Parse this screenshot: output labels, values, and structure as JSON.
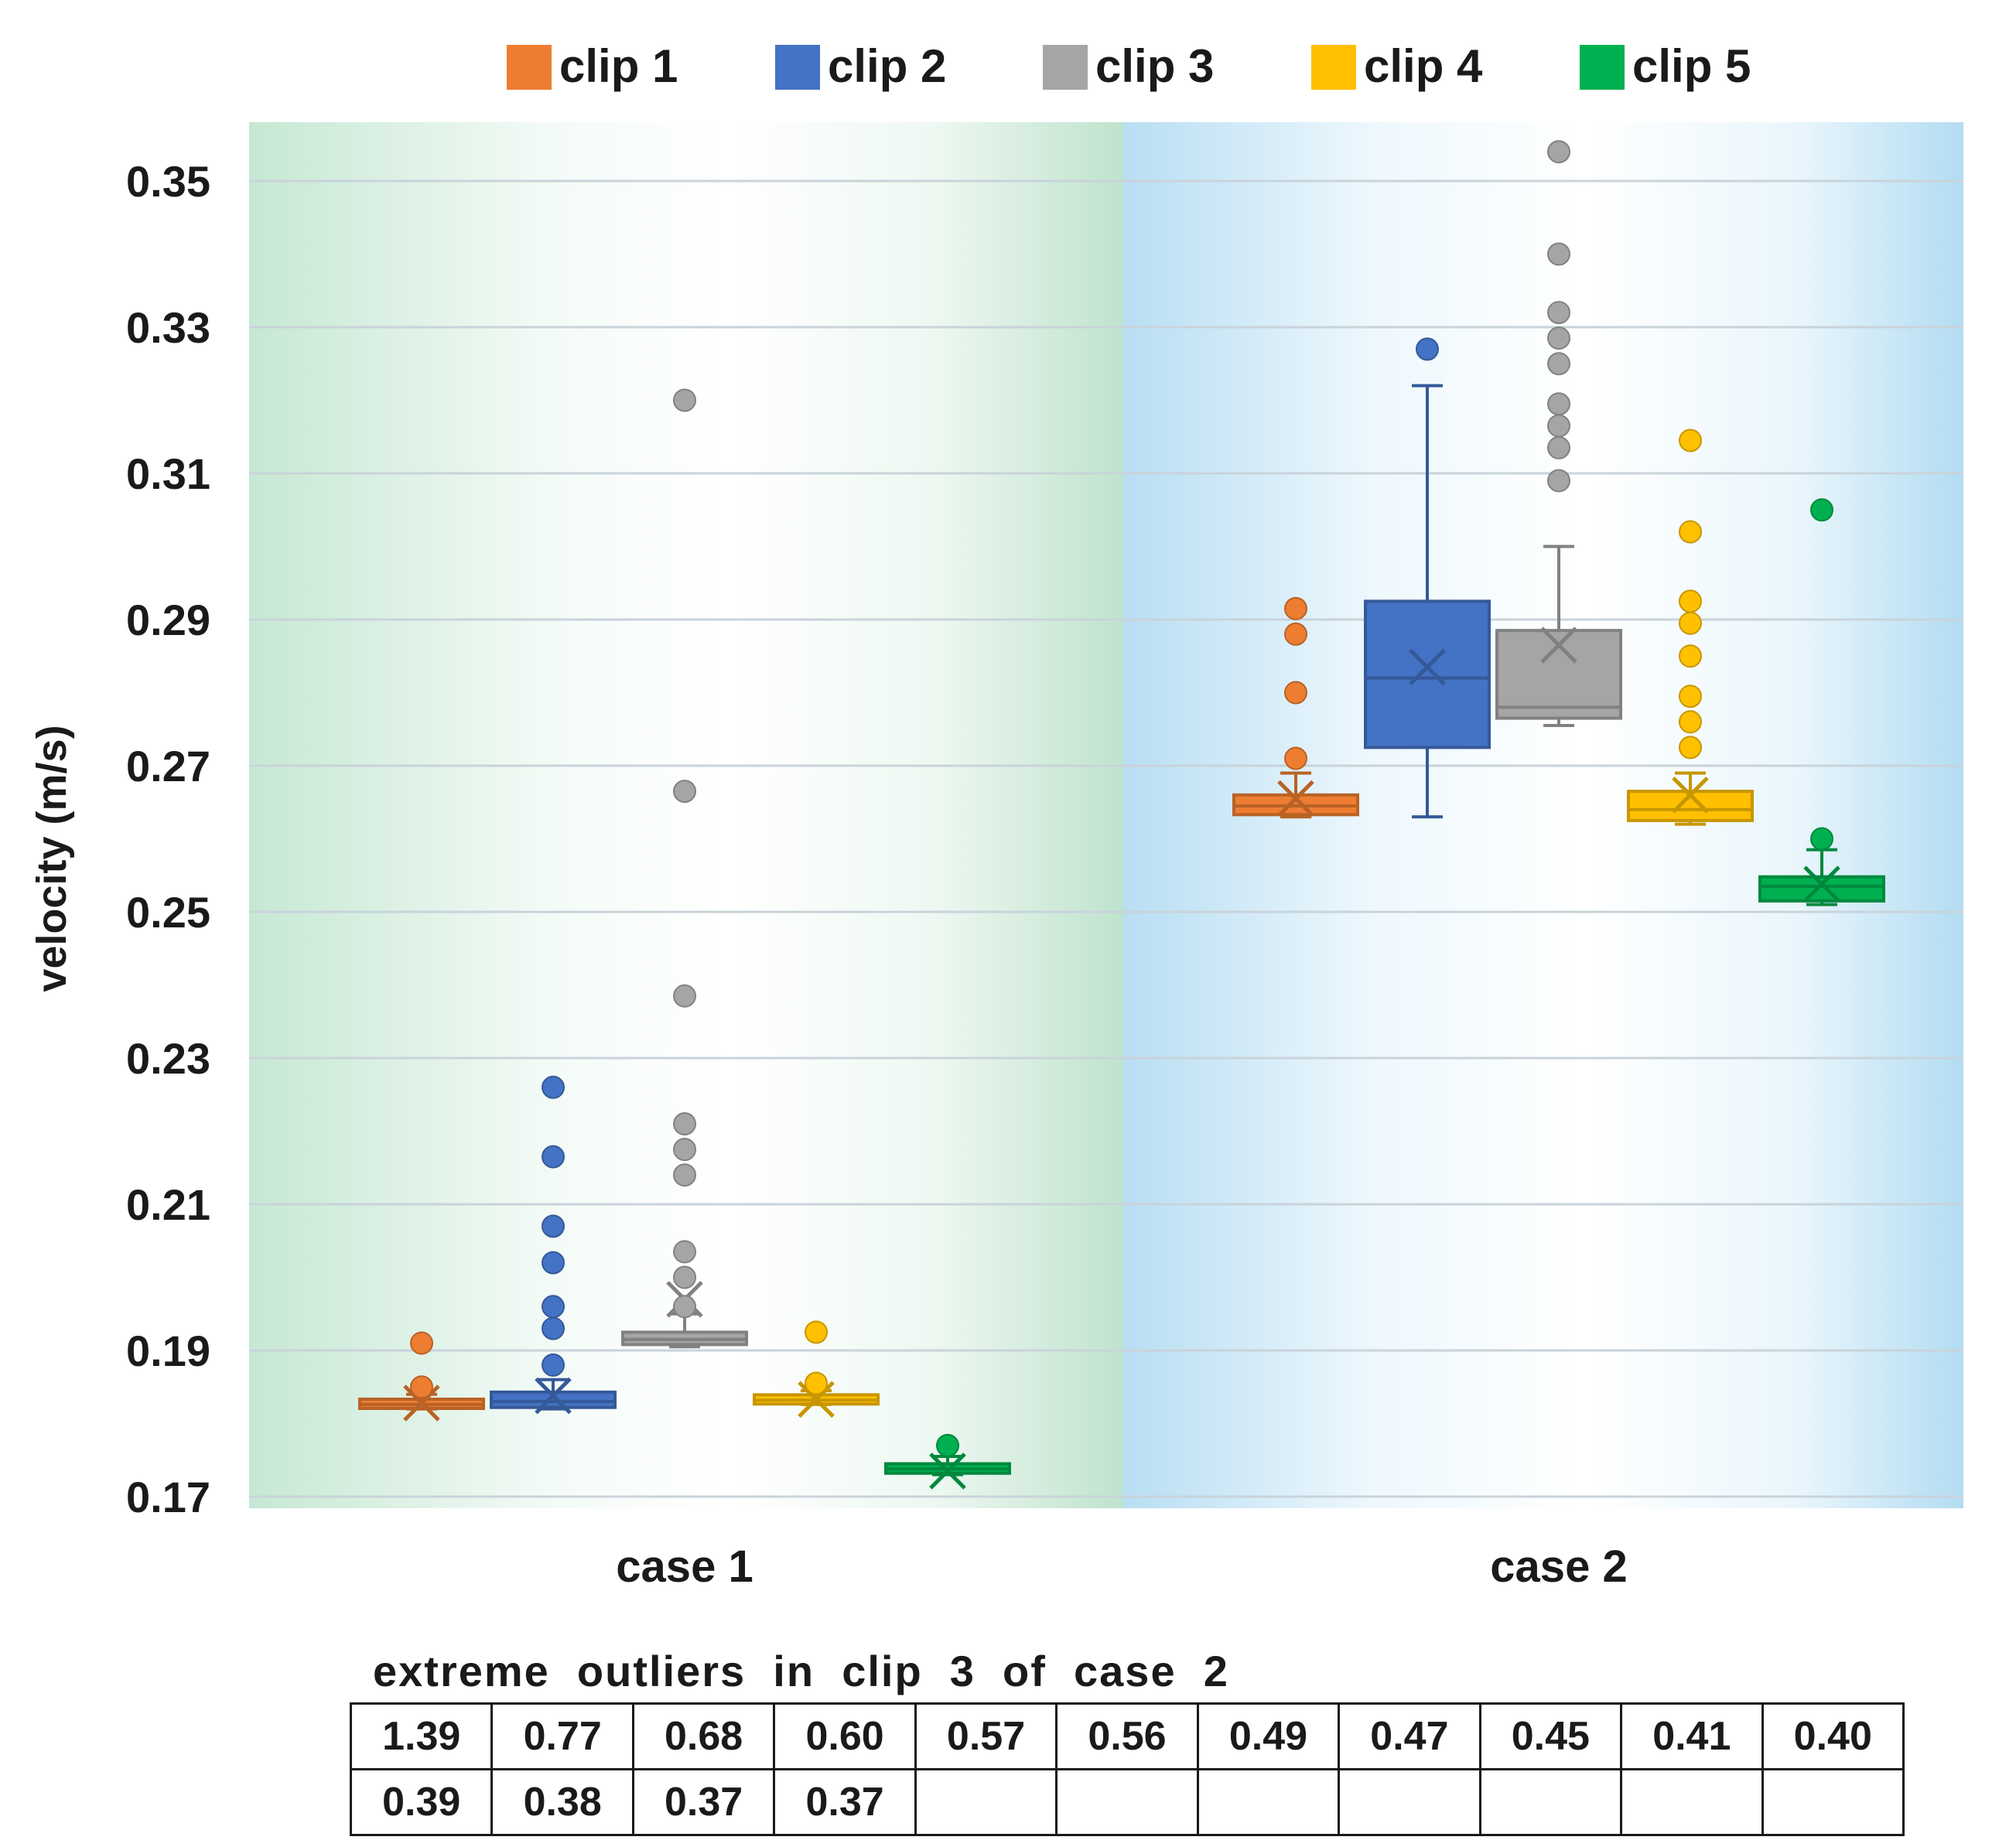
{
  "chart_data": {
    "type": "box",
    "ylabel": "velocity (m/s)",
    "ylim": [
      0.17,
      0.355
    ],
    "yticks": [
      "0.35",
      "0.33",
      "0.31",
      "0.29",
      "0.27",
      "0.25",
      "0.23",
      "0.21",
      "0.19",
      "0.17"
    ],
    "categories": [
      "case 1",
      "case 2"
    ],
    "legend_position": "top",
    "grid": true,
    "series": [
      {
        "name": "clip 1",
        "color": "#ED7D31",
        "boxes": [
          {
            "category": "case 1",
            "whisker_low": 0.182,
            "q1": 0.1821,
            "median": 0.1826,
            "q3": 0.1833,
            "whisker_high": 0.184,
            "mean": 0.1828,
            "outliers": [
              0.191,
              0.185
            ]
          },
          {
            "category": "case 2",
            "whisker_low": 0.263,
            "q1": 0.2633,
            "median": 0.2645,
            "q3": 0.266,
            "whisker_high": 0.269,
            "mean": 0.2655,
            "outliers": [
              0.2915,
              0.288,
              0.28,
              0.271
            ]
          }
        ]
      },
      {
        "name": "clip 2",
        "color": "#4472C4",
        "boxes": [
          {
            "category": "case 1",
            "whisker_low": 0.182,
            "q1": 0.1822,
            "median": 0.183,
            "q3": 0.1843,
            "whisker_high": 0.186,
            "mean": 0.1838,
            "outliers": [
              0.226,
              0.2165,
              0.207,
              0.202,
              0.196,
              0.193,
              0.188
            ]
          },
          {
            "category": "case 2",
            "whisker_low": 0.263,
            "q1": 0.2725,
            "median": 0.282,
            "q3": 0.2925,
            "whisker_high": 0.322,
            "mean": 0.2835,
            "outliers": [
              0.327
            ]
          }
        ]
      },
      {
        "name": "clip 3",
        "color": "#A5A5A5",
        "boxes": [
          {
            "category": "case 1",
            "whisker_low": 0.1905,
            "q1": 0.1908,
            "median": 0.1915,
            "q3": 0.1925,
            "whisker_high": 0.195,
            "mean": 0.197,
            "outliers": [
              0.32,
              0.2665,
              0.2385,
              0.221,
              0.2175,
              0.214,
              0.2035,
              0.2,
              0.196
            ]
          },
          {
            "category": "case 2",
            "whisker_low": 0.2755,
            "q1": 0.2765,
            "median": 0.278,
            "q3": 0.2885,
            "whisker_high": 0.3,
            "mean": 0.2865,
            "outliers": [
              0.354,
              0.34,
              0.332,
              0.3285,
              0.325,
              0.3195,
              0.3165,
              0.3135,
              0.309
            ]
          }
        ]
      },
      {
        "name": "clip 4",
        "color": "#FFC000",
        "boxes": [
          {
            "category": "case 1",
            "whisker_low": 0.1826,
            "q1": 0.1828,
            "median": 0.1832,
            "q3": 0.1838,
            "whisker_high": 0.1845,
            "mean": 0.1833,
            "outliers": [
              0.1925,
              0.1855
            ]
          },
          {
            "category": "case 2",
            "whisker_low": 0.262,
            "q1": 0.2625,
            "median": 0.264,
            "q3": 0.2665,
            "whisker_high": 0.269,
            "mean": 0.266,
            "outliers": [
              0.3145,
              0.302,
              0.2925,
              0.2895,
              0.285,
              0.2795,
              0.276,
              0.2725
            ]
          }
        ]
      },
      {
        "name": "clip 5",
        "color": "#00B050",
        "boxes": [
          {
            "category": "case 1",
            "whisker_low": 0.173,
            "q1": 0.1732,
            "median": 0.1738,
            "q3": 0.1745,
            "whisker_high": 0.1755,
            "mean": 0.1735,
            "outliers": [
              0.177
            ]
          },
          {
            "category": "case 2",
            "whisker_low": 0.251,
            "q1": 0.2515,
            "median": 0.2535,
            "q3": 0.2548,
            "whisker_high": 0.2585,
            "mean": 0.2538,
            "outliers": [
              0.305,
              0.26
            ]
          }
        ]
      }
    ],
    "case_backgrounds": {
      "case 1": "#CDEBD9",
      "case 2": "#BFE3F5"
    }
  },
  "outlier_table": {
    "title": "extreme  outliers  in  clip  3  of  case  2",
    "rows": [
      [
        "1.39",
        "0.77",
        "0.68",
        "0.60",
        "0.57",
        "0.56",
        "0.49",
        "0.47",
        "0.45",
        "0.41",
        "0.40"
      ],
      [
        "0.39",
        "0.38",
        "0.37",
        "0.37",
        "",
        "",
        "",
        "",
        "",
        "",
        ""
      ]
    ]
  }
}
